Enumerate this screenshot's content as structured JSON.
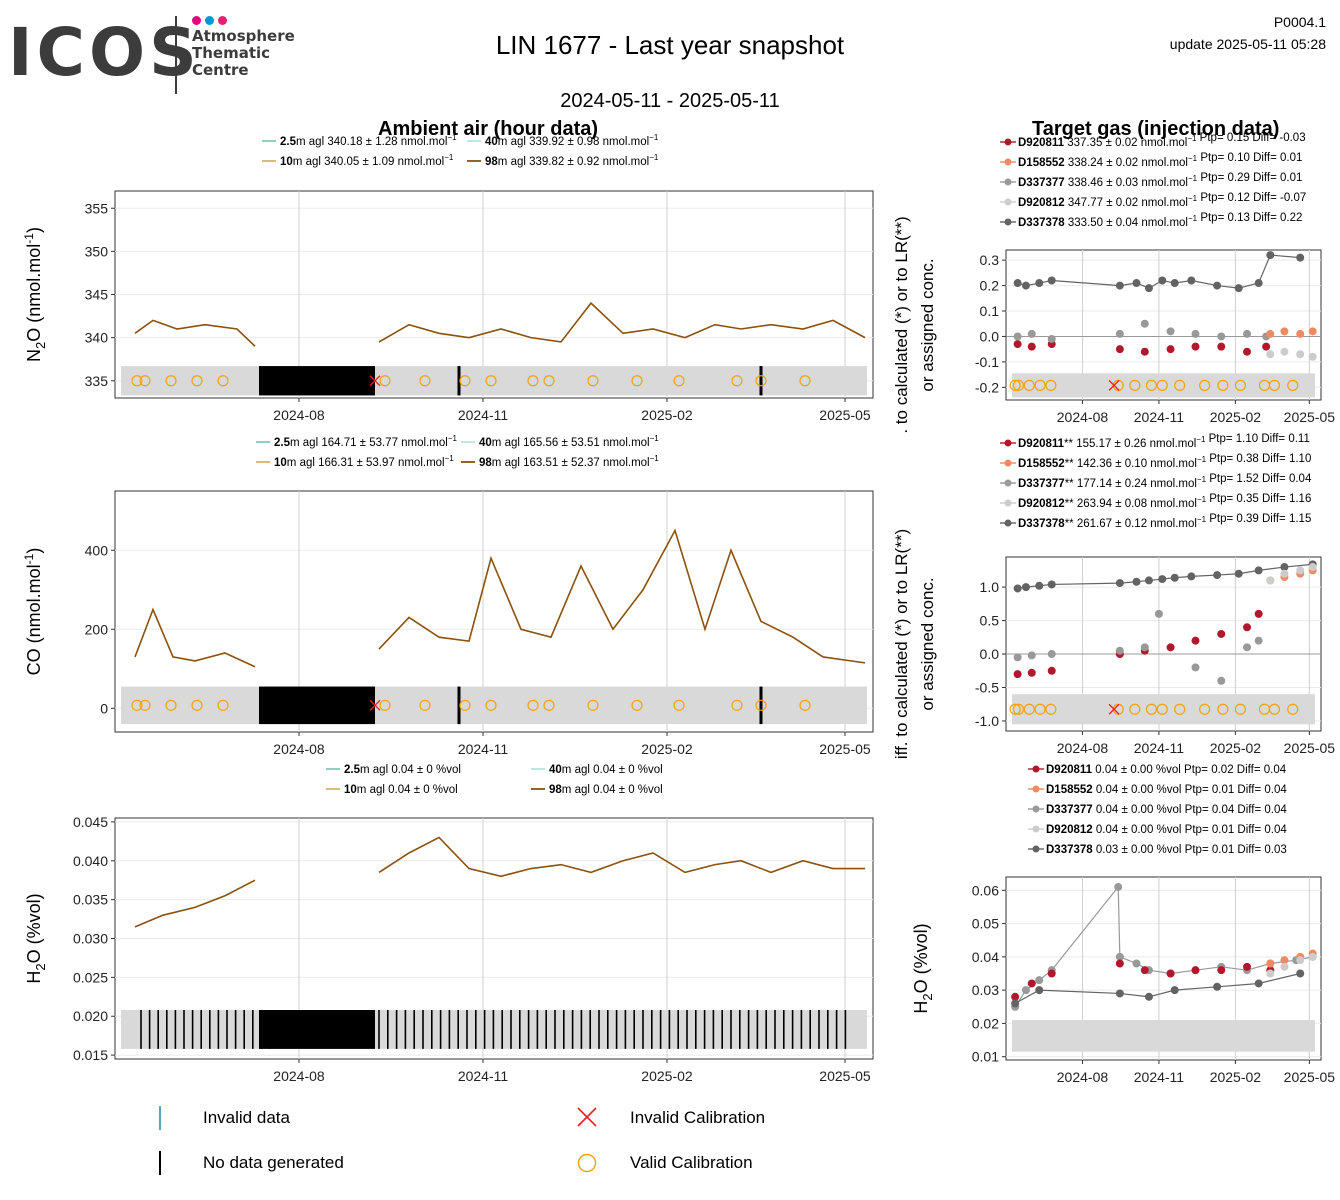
{
  "header": {
    "logo_text": "ICOS",
    "logo_sub": [
      "Atmosphere",
      "Thematic",
      "Centre"
    ],
    "title": "LIN 1677 - Last year snapshot",
    "period": "2024-05-11 - 2025-05-11",
    "code": "P0004.1",
    "update": "update  2025-05-11 05:28",
    "left_heading": "Ambient air (hour data)",
    "right_heading": "Target gas (injection data)"
  },
  "colors": {
    "h2_5": "#7fcdbb",
    "h10": "#d9b36c",
    "h40": "#b8e6de",
    "h98": "#8c510a",
    "t1": "#b2182b",
    "t2": "#ef8a62",
    "t3": "#999999",
    "t4": "#cccccc",
    "t5": "#636363",
    "calib_valid": "#f4a20a",
    "calib_invalid": "#e8221e",
    "band": "#d9d9d9"
  },
  "legend_bottom": {
    "invalid_data": "Invalid data",
    "no_data": "No data generated",
    "invalid_calibration": "Invalid Calibration",
    "valid_calibration": "Valid Calibration"
  },
  "chart_data": [
    {
      "id": "n2o_ambient",
      "type": "line",
      "ylabel": "N2O (nmol.mol-1)",
      "ylim": [
        333,
        357
      ],
      "yticks": [
        335,
        340,
        345,
        350,
        355
      ],
      "xticks": [
        "2024-08",
        "2024-11",
        "2025-02",
        "2025-05"
      ],
      "legend": [
        {
          "height": "2.5",
          "text": "m agl 340.18 ± 1.28 nmol.mol",
          "color": "h2_5"
        },
        {
          "height": "40",
          "text": "m agl 339.92 ± 0.98 nmol.mol",
          "color": "h40"
        },
        {
          "height": "10",
          "text": "m agl 340.05 ± 1.09 nmol.mol",
          "color": "h10"
        },
        {
          "height": "98",
          "text": "m agl 339.82 ± 0.92 nmol.mol",
          "color": "h98"
        }
      ],
      "series": [
        {
          "name": "98",
          "x": [
            "2024-05-11",
            "2024-05-20",
            "2024-06-01",
            "2024-06-15",
            "2024-07-01",
            "2024-07-10",
            "2024-09-10",
            "2024-09-25",
            "2024-10-10",
            "2024-10-25",
            "2024-11-10",
            "2024-11-25",
            "2024-12-10",
            "2024-12-25",
            "2025-01-10",
            "2025-01-25",
            "2025-02-10",
            "2025-02-25",
            "2025-03-10",
            "2025-03-25",
            "2025-04-10",
            "2025-04-25",
            "2025-05-11"
          ],
          "y": [
            340.5,
            342,
            341,
            341.5,
            341,
            339,
            339.5,
            341.5,
            340.5,
            340,
            341,
            340,
            339.5,
            344,
            340.5,
            341,
            340,
            341.5,
            341,
            341.5,
            341,
            342,
            340
          ]
        }
      ],
      "gaps": [
        [
          "2024-07-12",
          "2024-09-08"
        ]
      ],
      "valid_calibrations": [
        "2024-05-12",
        "2024-05-16",
        "2024-05-29",
        "2024-06-11",
        "2024-06-24",
        "2024-09-13",
        "2024-10-03",
        "2024-10-23",
        "2024-11-05",
        "2024-11-26",
        "2024-12-04",
        "2024-12-26",
        "2025-01-17",
        "2025-02-07",
        "2025-03-08",
        "2025-03-20",
        "2025-04-11"
      ],
      "invalid_calibrations": [
        "2024-09-08"
      ]
    },
    {
      "id": "co_ambient",
      "type": "line",
      "ylabel": "CO (nmol.mol-1)",
      "ylim": [
        -60,
        550
      ],
      "yticks": [
        0,
        200,
        400
      ],
      "xticks": [
        "2024-08",
        "2024-11",
        "2025-02",
        "2025-05"
      ],
      "legend": [
        {
          "height": "2.5",
          "text": "m agl 164.71 ± 53.77 nmol.mol",
          "color": "h2_5"
        },
        {
          "height": "40",
          "text": "m agl 165.56 ± 53.51 nmol.mol",
          "color": "h40"
        },
        {
          "height": "10",
          "text": "m agl 166.31 ± 53.97 nmol.mol",
          "color": "h10"
        },
        {
          "height": "98",
          "text": "m agl 163.51 ± 52.37 nmol.mol",
          "color": "h98"
        }
      ],
      "series": [
        {
          "name": "98",
          "x": [
            "2024-05-11",
            "2024-05-20",
            "2024-05-30",
            "2024-06-10",
            "2024-06-25",
            "2024-07-10",
            "2024-09-10",
            "2024-09-25",
            "2024-10-10",
            "2024-10-25",
            "2024-11-05",
            "2024-11-20",
            "2024-12-05",
            "2024-12-20",
            "2025-01-05",
            "2025-01-20",
            "2025-02-05",
            "2025-02-20",
            "2025-03-05",
            "2025-03-20",
            "2025-04-05",
            "2025-04-20",
            "2025-05-11"
          ],
          "y": [
            130,
            250,
            130,
            120,
            140,
            105,
            150,
            230,
            180,
            170,
            380,
            200,
            180,
            360,
            200,
            300,
            450,
            200,
            400,
            220,
            180,
            130,
            115
          ]
        }
      ],
      "gaps": [
        [
          "2024-07-12",
          "2024-09-08"
        ]
      ],
      "valid_calibrations": [
        "2024-05-12",
        "2024-05-16",
        "2024-05-29",
        "2024-06-11",
        "2024-06-24",
        "2024-09-13",
        "2024-10-03",
        "2024-10-23",
        "2024-11-05",
        "2024-11-26",
        "2024-12-04",
        "2024-12-26",
        "2025-01-17",
        "2025-02-07",
        "2025-03-08",
        "2025-03-20",
        "2025-04-11"
      ],
      "invalid_calibrations": [
        "2024-09-08"
      ]
    },
    {
      "id": "h2o_ambient",
      "type": "line",
      "ylabel": "H2O (%vol)",
      "ylim": [
        0.0145,
        0.0455
      ],
      "yticks": [
        0.015,
        0.02,
        0.025,
        0.03,
        0.035,
        0.04,
        0.045
      ],
      "xticks": [
        "2024-08",
        "2024-11",
        "2025-02",
        "2025-05"
      ],
      "legend": [
        {
          "height": "2.5",
          "text": "m agl 0.04 ± 0 %vol",
          "color": "h2_5"
        },
        {
          "height": "40",
          "text": "m agl 0.04 ± 0 %vol",
          "color": "h40"
        },
        {
          "height": "10",
          "text": "m agl 0.04 ± 0 %vol",
          "color": "h10"
        },
        {
          "height": "98",
          "text": "m agl 0.04 ± 0 %vol",
          "color": "h98"
        }
      ],
      "series": [
        {
          "name": "98",
          "x": [
            "2024-05-11",
            "2024-05-25",
            "2024-06-10",
            "2024-06-25",
            "2024-07-10",
            "2024-09-10",
            "2024-09-25",
            "2024-10-10",
            "2024-10-25",
            "2024-11-10",
            "2024-11-25",
            "2024-12-10",
            "2024-12-25",
            "2025-01-10",
            "2025-01-25",
            "2025-02-10",
            "2025-02-25",
            "2025-03-10",
            "2025-03-25",
            "2025-04-10",
            "2025-04-25",
            "2025-05-11"
          ],
          "y": [
            0.0315,
            0.033,
            0.034,
            0.0355,
            0.0375,
            0.0385,
            0.041,
            0.043,
            0.039,
            0.038,
            0.039,
            0.0395,
            0.0385,
            0.04,
            0.041,
            0.0385,
            0.0395,
            0.04,
            0.0385,
            0.04,
            0.039,
            0.039
          ]
        }
      ],
      "gaps": [
        [
          "2024-07-12",
          "2024-09-08"
        ]
      ]
    },
    {
      "id": "n2o_target",
      "type": "scatter",
      "ylabel": ". to calculated (*) or to LR(**) or assigned conc.",
      "ylim": [
        -0.25,
        0.34
      ],
      "yticks": [
        -0.2,
        -0.1,
        0.0,
        0.1,
        0.2,
        0.3
      ],
      "xticks": [
        "2024-08",
        "2024-11",
        "2025-02",
        "2025-05"
      ],
      "legend": [
        {
          "name": "D920811",
          "text": " 337.35 ± 0.02 nmol.mol",
          "stats": " Ptp= 0.15 Diff= -0.03",
          "color": "t1"
        },
        {
          "name": "D158552",
          "text": " 338.24 ± 0.02 nmol.mol",
          "stats": " Ptp= 0.10 Diff= 0.01",
          "color": "t2"
        },
        {
          "name": "D337377",
          "text": " 338.46 ± 0.03 nmol.mol",
          "stats": " Ptp= 0.29 Diff= 0.01",
          "color": "t3"
        },
        {
          "name": "D920812",
          "text": " 347.77 ± 0.02 nmol.mol",
          "stats": " Ptp= 0.12 Diff= -0.07",
          "color": "t4"
        },
        {
          "name": "D337378",
          "text": " 333.50 ± 0.04 nmol.mol",
          "stats": " Ptp= 0.13 Diff= 0.22",
          "color": "t5"
        }
      ],
      "series": [
        {
          "name": "D337378",
          "x": [
            "2024-05-15",
            "2024-05-25",
            "2024-06-10",
            "2024-06-25",
            "2024-09-15",
            "2024-10-05",
            "2024-10-20",
            "2024-11-05",
            "2024-11-20",
            "2024-12-10",
            "2025-01-10",
            "2025-02-05",
            "2025-03-01",
            "2025-03-15",
            "2025-04-20"
          ],
          "y": [
            0.21,
            0.2,
            0.21,
            0.22,
            0.2,
            0.21,
            0.19,
            0.22,
            0.21,
            0.22,
            0.2,
            0.19,
            0.21,
            0.32,
            0.31
          ]
        },
        {
          "name": "D920811",
          "x": [
            "2024-05-15",
            "2024-06-01",
            "2024-06-25",
            "2024-09-15",
            "2024-10-15",
            "2024-11-15",
            "2024-12-15",
            "2025-01-15",
            "2025-02-15",
            "2025-03-10"
          ],
          "y": [
            -0.03,
            -0.04,
            -0.03,
            -0.05,
            -0.06,
            -0.05,
            -0.04,
            -0.04,
            -0.06,
            -0.04
          ]
        },
        {
          "name": "D337377",
          "x": [
            "2024-05-15",
            "2024-06-01",
            "2024-06-25",
            "2024-09-15",
            "2024-10-15",
            "2024-11-15",
            "2024-12-15",
            "2025-01-15",
            "2025-02-15",
            "2025-03-10"
          ],
          "y": [
            0.0,
            0.01,
            -0.01,
            0.01,
            0.05,
            0.02,
            0.01,
            0.0,
            0.01,
            0.0
          ]
        },
        {
          "name": "D158552",
          "x": [
            "2025-03-15",
            "2025-04-01",
            "2025-04-20",
            "2025-05-05"
          ],
          "y": [
            0.01,
            0.02,
            0.01,
            0.02
          ]
        },
        {
          "name": "D920812",
          "x": [
            "2025-03-15",
            "2025-04-01",
            "2025-04-20",
            "2025-05-05"
          ],
          "y": [
            -0.07,
            -0.06,
            -0.07,
            -0.08
          ]
        }
      ],
      "valid_calibrations": [
        "2024-05-12",
        "2024-05-16",
        "2024-05-29",
        "2024-06-11",
        "2024-06-24",
        "2024-09-13",
        "2024-10-03",
        "2024-10-23",
        "2024-11-05",
        "2024-11-26",
        "2024-12-26",
        "2025-01-17",
        "2025-02-07",
        "2025-03-08",
        "2025-03-20",
        "2025-04-11"
      ],
      "invalid_calibrations": [
        "2024-09-08"
      ]
    },
    {
      "id": "co_target",
      "type": "scatter",
      "ylabel": "iff. to calculated (*) or to LR(**) or assigned conc.",
      "ylim": [
        -1.15,
        1.45
      ],
      "yticks": [
        -1.0,
        -0.5,
        0.0,
        0.5,
        1.0
      ],
      "xticks": [
        "2024-08",
        "2024-11",
        "2025-02",
        "2025-05"
      ],
      "legend": [
        {
          "name": "D920811",
          "text": "** 155.17 ± 0.26 nmol.mol",
          "stats": " Ptp= 1.10 Diff= 0.11",
          "color": "t1"
        },
        {
          "name": "D158552",
          "text": "** 142.36 ± 0.10 nmol.mol",
          "stats": " Ptp= 0.38 Diff= 1.10",
          "color": "t2"
        },
        {
          "name": "D337377",
          "text": "** 177.14 ± 0.24 nmol.mol",
          "stats": " Ptp= 1.52 Diff= 0.04",
          "color": "t3"
        },
        {
          "name": "D920812",
          "text": "** 263.94 ± 0.08 nmol.mol",
          "stats": " Ptp= 0.35 Diff= 1.16",
          "color": "t4"
        },
        {
          "name": "D337378",
          "text": "** 261.67 ± 0.12 nmol.mol",
          "stats": " Ptp= 0.39 Diff= 1.15",
          "color": "t5"
        }
      ],
      "series": [
        {
          "name": "D337378",
          "x": [
            "2024-05-15",
            "2024-05-25",
            "2024-06-10",
            "2024-06-25",
            "2024-09-15",
            "2024-10-05",
            "2024-10-20",
            "2024-11-05",
            "2024-11-20",
            "2024-12-10",
            "2025-01-10",
            "2025-02-05",
            "2025-03-01",
            "2025-04-01",
            "2025-05-05"
          ],
          "y": [
            0.98,
            1.0,
            1.02,
            1.04,
            1.06,
            1.08,
            1.1,
            1.12,
            1.14,
            1.16,
            1.18,
            1.2,
            1.25,
            1.3,
            1.34
          ]
        },
        {
          "name": "D920811",
          "x": [
            "2024-05-15",
            "2024-06-01",
            "2024-06-25",
            "2024-09-15",
            "2024-10-15",
            "2024-11-15",
            "2024-12-15",
            "2025-01-15",
            "2025-02-15",
            "2025-03-01"
          ],
          "y": [
            -0.3,
            -0.28,
            -0.25,
            0.0,
            0.05,
            0.1,
            0.2,
            0.3,
            0.4,
            0.6
          ]
        },
        {
          "name": "D337377",
          "x": [
            "2024-05-15",
            "2024-06-01",
            "2024-06-25",
            "2024-09-15",
            "2024-10-15",
            "2024-11-01",
            "2024-12-15",
            "2025-01-15",
            "2025-02-15",
            "2025-03-01"
          ],
          "y": [
            -0.05,
            -0.02,
            0.0,
            0.05,
            0.1,
            0.6,
            -0.2,
            -0.4,
            0.1,
            0.2
          ]
        },
        {
          "name": "D158552",
          "x": [
            "2025-03-15",
            "2025-04-01",
            "2025-04-20",
            "2025-05-05"
          ],
          "y": [
            1.1,
            1.15,
            1.2,
            1.25
          ]
        },
        {
          "name": "D920812",
          "x": [
            "2025-03-15",
            "2025-04-01",
            "2025-04-20",
            "2025-05-05"
          ],
          "y": [
            1.1,
            1.2,
            1.25,
            1.3
          ]
        }
      ],
      "valid_calibrations": [
        "2024-05-12",
        "2024-05-16",
        "2024-05-29",
        "2024-06-11",
        "2024-06-24",
        "2024-09-13",
        "2024-10-03",
        "2024-10-23",
        "2024-11-05",
        "2024-11-26",
        "2024-12-26",
        "2025-01-17",
        "2025-02-07",
        "2025-03-08",
        "2025-03-20",
        "2025-04-11"
      ],
      "invalid_calibrations": [
        "2024-09-08"
      ]
    },
    {
      "id": "h2o_target",
      "type": "scatter",
      "ylabel": "H2O (%vol)",
      "ylim": [
        0.009,
        0.064
      ],
      "yticks": [
        0.01,
        0.02,
        0.03,
        0.04,
        0.05,
        0.06
      ],
      "xticks": [
        "2024-08",
        "2024-11",
        "2025-02",
        "2025-05"
      ],
      "legend": [
        {
          "name": "D920811",
          "text": " 0.04 ± 0.00 %vol",
          "stats": " Ptp= 0.02 Diff= 0.04",
          "color": "t1"
        },
        {
          "name": "D158552",
          "text": " 0.04 ± 0.00 %vol",
          "stats": " Ptp= 0.01 Diff= 0.04",
          "color": "t2"
        },
        {
          "name": "D337377",
          "text": " 0.04 ± 0.00 %vol",
          "stats": " Ptp= 0.04 Diff= 0.04",
          "color": "t3"
        },
        {
          "name": "D920812",
          "text": " 0.04 ± 0.00 %vol",
          "stats": " Ptp= 0.01 Diff= 0.04",
          "color": "t4"
        },
        {
          "name": "D337378",
          "text": " 0.03 ± 0.00 %vol",
          "stats": " Ptp= 0.01 Diff= 0.03",
          "color": "t5"
        }
      ],
      "series": [
        {
          "name": "D337377",
          "x": [
            "2024-05-12",
            "2024-05-25",
            "2024-06-10",
            "2024-06-25",
            "2024-09-13",
            "2024-09-15",
            "2024-10-05",
            "2024-10-20",
            "2024-11-15",
            "2024-12-15",
            "2025-01-15",
            "2025-02-15",
            "2025-03-15",
            "2025-04-15",
            "2025-05-05"
          ],
          "y": [
            0.025,
            0.03,
            0.033,
            0.036,
            0.061,
            0.04,
            0.038,
            0.036,
            0.035,
            0.036,
            0.037,
            0.036,
            0.038,
            0.039,
            0.04
          ]
        },
        {
          "name": "D920811",
          "x": [
            "2024-05-12",
            "2024-06-01",
            "2024-06-25",
            "2024-09-15",
            "2024-10-15",
            "2024-11-15",
            "2024-12-15",
            "2025-01-15",
            "2025-02-15",
            "2025-03-15"
          ],
          "y": [
            0.028,
            0.032,
            0.035,
            0.038,
            0.036,
            0.035,
            0.036,
            0.036,
            0.037,
            0.036
          ]
        },
        {
          "name": "D337378",
          "x": [
            "2024-05-12",
            "2024-06-10",
            "2024-09-15",
            "2024-10-20",
            "2024-11-20",
            "2025-01-10",
            "2025-03-01",
            "2025-04-20"
          ],
          "y": [
            0.026,
            0.03,
            0.029,
            0.028,
            0.03,
            0.031,
            0.032,
            0.035
          ]
        },
        {
          "name": "D158552",
          "x": [
            "2025-03-15",
            "2025-04-01",
            "2025-04-20",
            "2025-05-05"
          ],
          "y": [
            0.038,
            0.039,
            0.04,
            0.041
          ]
        },
        {
          "name": "D920812",
          "x": [
            "2025-03-15",
            "2025-04-01",
            "2025-04-20",
            "2025-05-05"
          ],
          "y": [
            0.035,
            0.037,
            0.039,
            0.04
          ]
        }
      ]
    }
  ]
}
